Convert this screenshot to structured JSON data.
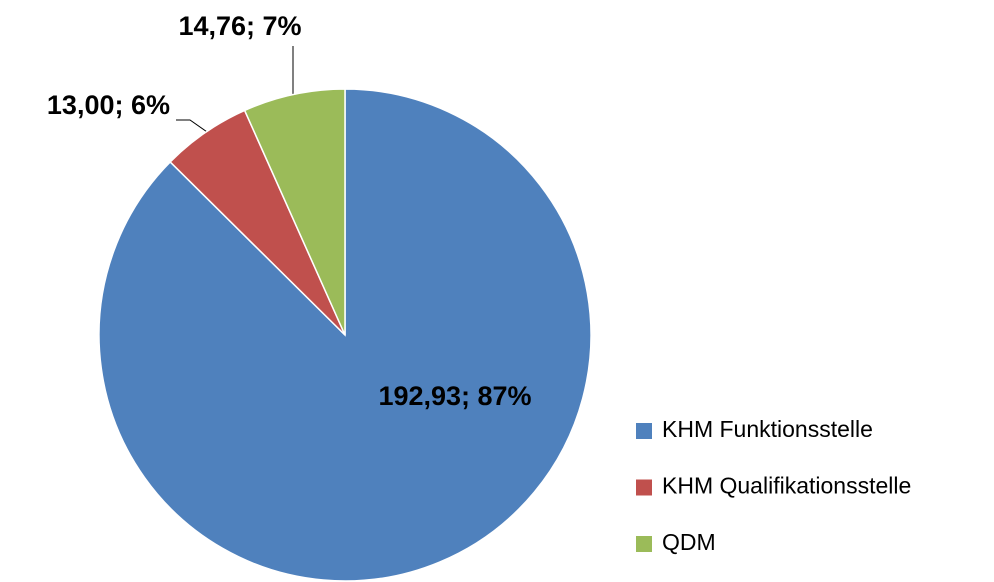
{
  "chart_data": {
    "type": "pie",
    "categories": [
      "KHM Funktionsstelle",
      "KHM Qualifikationsstelle",
      "QDM"
    ],
    "values": [
      192.93,
      13.0,
      14.76
    ],
    "value_labels": [
      "192,93; 87%",
      "13,00; 6%",
      "14,76; 7%"
    ],
    "colors": [
      "#4f81bd",
      "#c0504d",
      "#9bbb59"
    ],
    "legend": "right"
  }
}
